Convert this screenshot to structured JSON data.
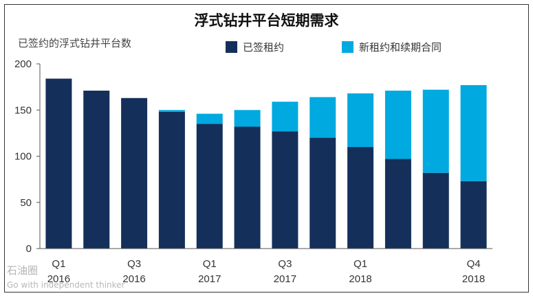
{
  "chart_data": {
    "type": "bar",
    "stacked": true,
    "title": "浮式钻井平台短期需求",
    "ylabel": "已签约的浮式钻井平台数",
    "ylim": [
      0,
      200
    ],
    "yticks": [
      0,
      50,
      100,
      150,
      200
    ],
    "categories": [
      "Q1 2016",
      "Q2 2016",
      "Q3 2016",
      "Q4 2016",
      "Q1 2017",
      "Q2 2017",
      "Q3 2017",
      "Q4 2017",
      "Q1 2018",
      "Q2 2018",
      "Q3 2018",
      "Q4 2018"
    ],
    "tick_labels": [
      {
        "index": 0,
        "line1": "Q1",
        "line2": "2016"
      },
      {
        "index": 2,
        "line1": "Q3",
        "line2": "2016"
      },
      {
        "index": 4,
        "line1": "Q1",
        "line2": "2017"
      },
      {
        "index": 6,
        "line1": "Q3",
        "line2": "2017"
      },
      {
        "index": 8,
        "line1": "Q1",
        "line2": "2018"
      },
      {
        "index": 11,
        "line1": "Q4",
        "line2": "2018"
      }
    ],
    "series": [
      {
        "name": "已签租约",
        "color": "#14305a",
        "values": [
          184,
          171,
          163,
          148,
          135,
          132,
          127,
          120,
          110,
          97,
          82,
          73
        ]
      },
      {
        "name": "新租约和续期合同",
        "color": "#00a9e0",
        "values": [
          0,
          0,
          0,
          2,
          11,
          18,
          32,
          44,
          58,
          74,
          90,
          104
        ]
      }
    ],
    "legend_position": "top"
  },
  "watermark": {
    "text": "石油圈",
    "sub": "Go with independent thinker"
  }
}
